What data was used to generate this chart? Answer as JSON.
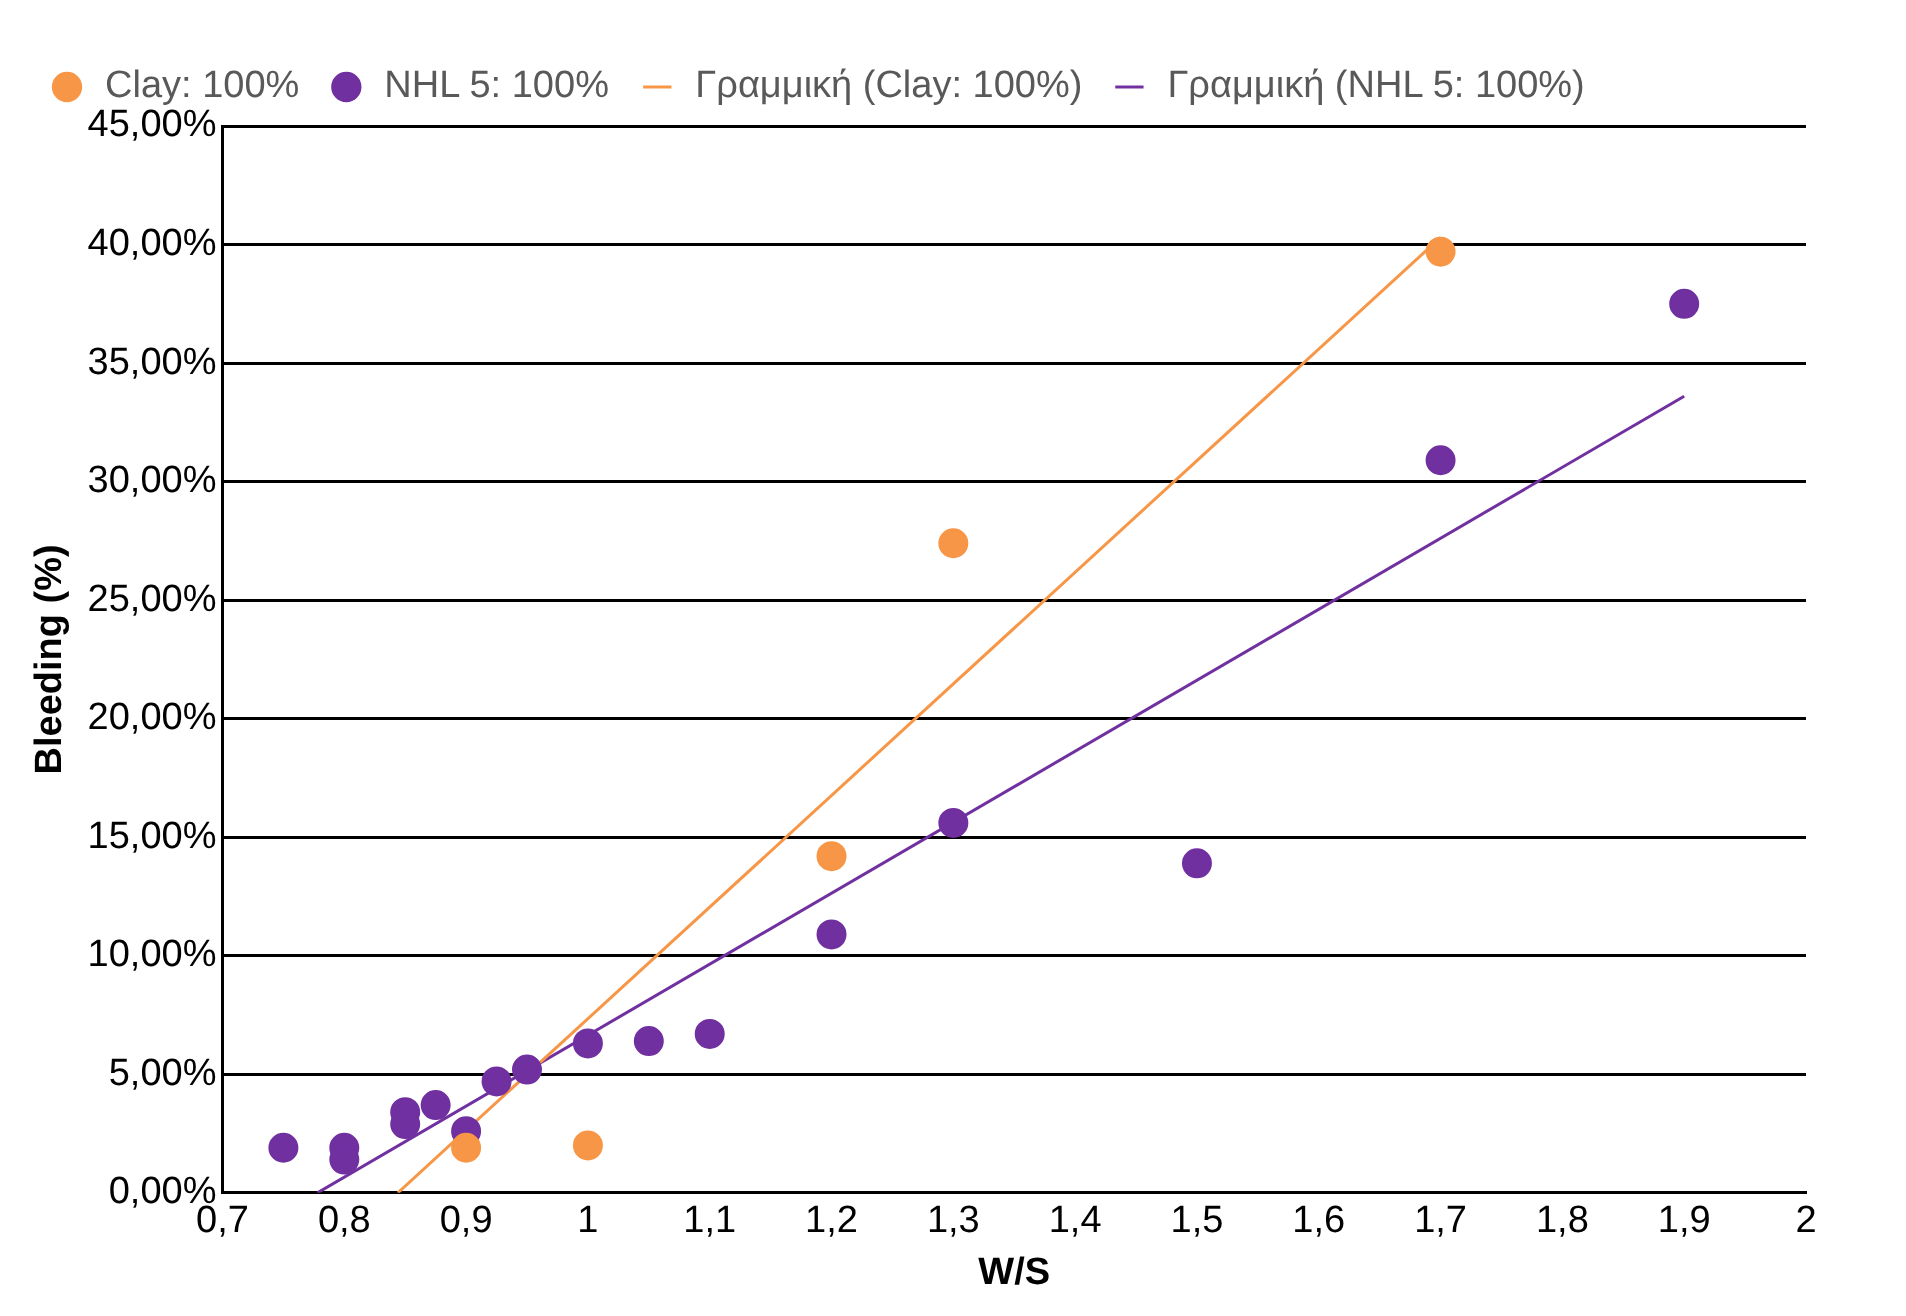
{
  "chart_data": {
    "type": "scatter",
    "xlabel": "W/S",
    "ylabel": "Bleeding (%)",
    "xlim": [
      0.7,
      2
    ],
    "xticks": [
      {
        "value": 0.7,
        "label": "0,7"
      },
      {
        "value": 0.8,
        "label": "0,8"
      },
      {
        "value": 0.9,
        "label": "0,9"
      },
      1,
      {
        "value": 1.1,
        "label": "1,1"
      },
      {
        "value": 1.2,
        "label": "1,2"
      },
      {
        "value": 1.3,
        "label": "1,3"
      },
      {
        "value": 1.4,
        "label": "1,4"
      },
      {
        "value": 1.5,
        "label": "1,5"
      },
      {
        "value": 1.6,
        "label": "1,6"
      },
      {
        "value": 1.7,
        "label": "1,7"
      },
      {
        "value": 1.8,
        "label": "1,8"
      },
      {
        "value": 1.9,
        "label": "1,9"
      },
      2
    ],
    "ylim": [
      0,
      0.45
    ],
    "yticks": [
      {
        "value": 0,
        "label": "0,00%"
      },
      {
        "value": 0.05,
        "label": "5,00%"
      },
      {
        "value": 0.1,
        "label": "10,00%"
      },
      {
        "value": 0.15,
        "label": "15,00%"
      },
      {
        "value": 0.2,
        "label": "20,00%"
      },
      {
        "value": 0.25,
        "label": "25,00%"
      },
      {
        "value": 0.3,
        "label": "30,00%"
      },
      {
        "value": 0.35,
        "label": "35,00%"
      },
      {
        "value": 0.4,
        "label": "40,00%"
      },
      {
        "value": 0.45,
        "label": "45,00%"
      }
    ],
    "grid": "y",
    "legend": "top",
    "series": [
      {
        "name": "Clay: 100%",
        "marker": "circle",
        "color": "#f79646",
        "x": [
          0.9,
          1.0,
          1.2,
          1.3,
          1.7
        ],
        "values": [
          0.019,
          0.02,
          0.142,
          0.274,
          0.397
        ]
      },
      {
        "name": "NHL 5: 100%",
        "marker": "circle",
        "color": "#7030a0",
        "x": [
          0.75,
          0.8,
          0.8,
          0.85,
          0.85,
          0.875,
          0.9,
          0.925,
          0.95,
          1.0,
          1.05,
          1.1,
          1.2,
          1.3,
          1.5,
          1.7,
          1.9
        ],
        "values": [
          0.019,
          0.019,
          0.014,
          0.034,
          0.029,
          0.037,
          0.026,
          0.047,
          0.052,
          0.063,
          0.064,
          0.067,
          0.109,
          0.156,
          0.139,
          0.309,
          0.375
        ]
      },
      {
        "name": "Γραμμική (Clay: 100%)",
        "type": "line",
        "line_style": "solid",
        "color": "#f79646",
        "x": [
          0.844,
          1.7
        ],
        "values": [
          0,
          0.403
        ]
      },
      {
        "name": "Γραμμική (NHL 5: 100%)",
        "type": "line",
        "line_style": "solid",
        "color": "#7030a0",
        "x": [
          0.778,
          1.9
        ],
        "values": [
          0,
          0.336
        ]
      }
    ]
  }
}
